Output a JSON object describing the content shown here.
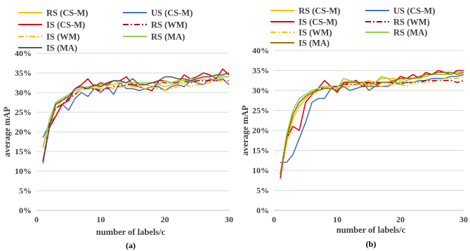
{
  "chart_data": [
    {
      "type": "line",
      "panel_label": "(a)",
      "xlabel": "number of labels/c",
      "ylabel": "average mAP",
      "xlim": [
        0,
        30
      ],
      "ylim": [
        0,
        40
      ],
      "x_ticks": [
        "0",
        "10",
        "20",
        "30"
      ],
      "y_ticks": [
        "0%",
        "5%",
        "10%",
        "15%",
        "20%",
        "25%",
        "30%",
        "35%",
        "40%"
      ],
      "grid": "horizontal",
      "legend_position": "top",
      "x": [
        1,
        2,
        3,
        4,
        5,
        6,
        7,
        8,
        9,
        10,
        11,
        12,
        13,
        14,
        15,
        16,
        17,
        18,
        19,
        20,
        21,
        22,
        23,
        24,
        25,
        26,
        27,
        28,
        29,
        30
      ],
      "series": [
        {
          "name": "RS (CS-M)",
          "color": "#FFC000",
          "dash": "solid",
          "values": [
            16,
            22,
            27,
            28.5,
            29,
            30.5,
            31,
            31.5,
            31,
            31.5,
            32,
            32,
            32.5,
            32.5,
            32,
            32.5,
            32,
            31.5,
            32,
            31.5,
            32,
            32.5,
            32.5,
            33,
            33,
            33.5,
            33,
            33.5,
            34,
            34
          ]
        },
        {
          "name": "US (CS-M)",
          "color": "#4472C4",
          "dash": "solid",
          "values": [
            18.5,
            22,
            24,
            27,
            25.5,
            28.5,
            30,
            29,
            31,
            30,
            31.5,
            29.5,
            32.5,
            31,
            31,
            30.5,
            31,
            31.5,
            31.5,
            30.5,
            31.5,
            32,
            31.5,
            33,
            32.5,
            32,
            33.5,
            33,
            33.5,
            32
          ]
        },
        {
          "name": "IS (CS-M)",
          "color": "#E00000",
          "dash": "solid",
          "values": [
            12.5,
            21,
            24,
            27,
            28,
            31,
            32,
            33.5,
            31.5,
            32.5,
            32,
            33,
            33,
            34,
            32,
            31.5,
            31,
            30.5,
            33,
            33,
            32.5,
            32.5,
            34.5,
            33.5,
            34,
            35,
            34.5,
            33.5,
            36,
            34.5
          ]
        },
        {
          "name": "RS (WM)",
          "color": "#A50021",
          "dash": "8,3,2,3",
          "values": [
            12.5,
            22,
            26,
            27,
            28.5,
            29.5,
            31,
            31,
            31,
            30.5,
            31,
            31.5,
            31.5,
            32,
            32,
            32,
            32,
            32.5,
            32.5,
            32.5,
            32.5,
            33,
            33,
            32.5,
            33,
            33,
            33,
            33,
            33,
            33
          ]
        },
        {
          "name": "IS (WM)",
          "color": "#FFC000",
          "dash": "8,3,2,3",
          "values": [
            16,
            21,
            26,
            28,
            29,
            30,
            30.5,
            31,
            31,
            31,
            31.5,
            31,
            31.5,
            31.5,
            31.5,
            31.5,
            31,
            31.5,
            31,
            30.5,
            31,
            31.5,
            32,
            31.5,
            32,
            32,
            32.5,
            33,
            33,
            33
          ]
        },
        {
          "name": "RS (MA)",
          "color": "#92D050",
          "dash": "solid",
          "values": [
            16,
            23,
            27.5,
            28.5,
            29.5,
            30.5,
            31,
            31.5,
            31.5,
            32,
            32.5,
            33,
            32.5,
            32.5,
            32.5,
            32.5,
            32.5,
            32.5,
            32,
            33,
            32.5,
            33,
            33,
            33.5,
            33.5,
            34,
            34,
            34,
            34,
            34
          ]
        },
        {
          "name": "IS (MA)",
          "color": "#595959",
          "dash": "solid",
          "values": [
            12,
            21,
            27,
            28,
            29,
            31,
            31.5,
            31,
            32,
            31.5,
            32.5,
            33,
            33,
            32.5,
            33.5,
            32,
            32,
            32.5,
            33,
            34,
            34,
            33.5,
            33.5,
            33,
            33.5,
            34,
            34,
            34.5,
            34.5,
            35
          ]
        }
      ]
    },
    {
      "type": "line",
      "panel_label": "(b)",
      "xlabel": "number of labels/c",
      "ylabel": "average mAP",
      "xlim": [
        0,
        30
      ],
      "ylim": [
        0,
        40
      ],
      "x_ticks": [
        "0",
        "10",
        "20",
        "30"
      ],
      "y_ticks": [
        "0%",
        "5%",
        "10%",
        "15%",
        "20%",
        "25%",
        "30%",
        "35%",
        "40%"
      ],
      "grid": "horizontal",
      "legend_position": "top",
      "x": [
        1,
        2,
        3,
        4,
        5,
        6,
        7,
        8,
        9,
        10,
        11,
        12,
        13,
        14,
        15,
        16,
        17,
        18,
        19,
        20,
        21,
        22,
        23,
        24,
        25,
        26,
        27,
        28,
        29,
        30
      ],
      "series": [
        {
          "name": "RS (CS-M)",
          "color": "#FFC000",
          "dash": "solid",
          "values": [
            9,
            17,
            23,
            26,
            28,
            29.5,
            30.5,
            31,
            31,
            31,
            32,
            32.5,
            32,
            32,
            32.5,
            32,
            33,
            33,
            33,
            32.5,
            33,
            33,
            33.5,
            33.5,
            34,
            34,
            34,
            34,
            34.5,
            34.5
          ]
        },
        {
          "name": "US (CS-M)",
          "color": "#4472C4",
          "dash": "solid",
          "values": [
            12,
            12,
            14,
            18,
            22,
            27,
            28,
            28,
            30.5,
            30,
            31,
            30,
            30.5,
            31,
            31,
            31,
            31,
            31,
            32,
            31.5,
            32,
            32,
            32.5,
            32.5,
            33,
            33,
            33,
            33.5,
            33.5,
            34
          ]
        },
        {
          "name": "IS (CS-M)",
          "color": "#E00000",
          "dash": "solid",
          "values": [
            8,
            18,
            21,
            20,
            27,
            29,
            30.5,
            32.5,
            31,
            29.5,
            32,
            32,
            32.5,
            31,
            32,
            31.5,
            32,
            32,
            32,
            33.5,
            33,
            34,
            33,
            34.5,
            34,
            35,
            34.5,
            34,
            35,
            35
          ]
        },
        {
          "name": "RS (WM)",
          "color": "#A50021",
          "dash": "8,3,2,3",
          "values": [
            9,
            18,
            24,
            27,
            28.5,
            29.5,
            30,
            31,
            31,
            31,
            31.5,
            31.5,
            31.5,
            32,
            32,
            32,
            32,
            32,
            32,
            32,
            32,
            32,
            32,
            32.5,
            32.5,
            32.5,
            32.5,
            32.5,
            32,
            32.5
          ]
        },
        {
          "name": "IS (WM)",
          "color": "#FFC000",
          "dash": "8,3,2,3",
          "values": [
            9,
            17,
            23,
            26,
            28,
            29,
            30,
            30.5,
            31,
            30.5,
            31,
            31,
            31.5,
            31.5,
            31.5,
            31.5,
            31,
            31.5,
            31.5,
            31.5,
            31,
            32,
            32,
            32,
            32,
            32.5,
            33,
            33,
            33,
            33.5
          ]
        },
        {
          "name": "RS (MA)",
          "color": "#92D050",
          "dash": "solid",
          "values": [
            9,
            19,
            25,
            28,
            29,
            30,
            30.5,
            31,
            31,
            30.5,
            33,
            32.5,
            32,
            32,
            31,
            32,
            33.5,
            33,
            32,
            32,
            32.5,
            33,
            33,
            33.5,
            34,
            34,
            34,
            34,
            34.5,
            34.5
          ]
        },
        {
          "name": "IS (MA)",
          "color": "#9C7400",
          "dash": "solid",
          "values": [
            9,
            18,
            24,
            27,
            28.5,
            29.5,
            30,
            30.5,
            30.5,
            30,
            31.5,
            32,
            32,
            32,
            30,
            31,
            32,
            32,
            32.5,
            33,
            33,
            33,
            33.5,
            34,
            34,
            34.5,
            34.5,
            34.5,
            34,
            34.5
          ]
        }
      ]
    }
  ]
}
